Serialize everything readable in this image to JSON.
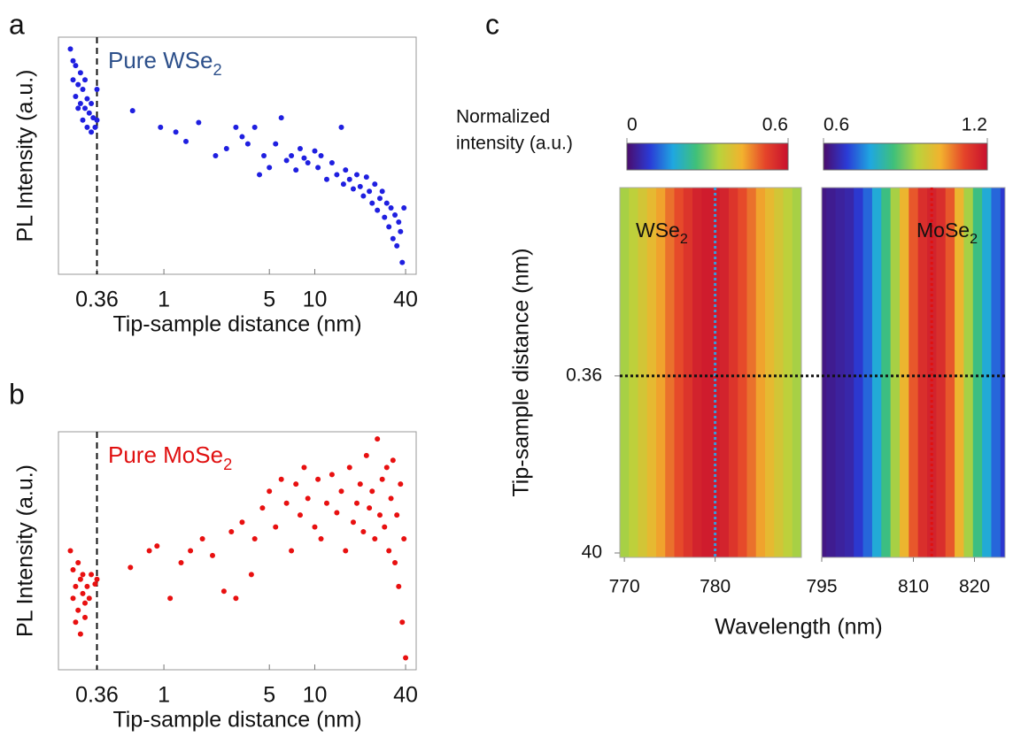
{
  "chart_data": [
    {
      "type": "scatter",
      "label": "a",
      "xlabel": "Tip-sample distance (nm)",
      "ylabel": "PL Intensity (a.u.)",
      "log_x": true,
      "xlim": [
        0.2,
        47
      ],
      "xticks": [
        0.36,
        1,
        5,
        10,
        40
      ],
      "ylim": [
        0,
        1
      ],
      "vline": 0.36,
      "annotation": {
        "text": "Pure WSe",
        "sub": "2",
        "color": "#2c4f8a"
      },
      "series": [
        {
          "color": "#1f1fe0",
          "x": [
            0.24,
            0.25,
            0.25,
            0.26,
            0.26,
            0.27,
            0.27,
            0.28,
            0.28,
            0.29,
            0.29,
            0.3,
            0.3,
            0.31,
            0.31,
            0.32,
            0.33,
            0.33,
            0.34,
            0.35,
            0.36,
            0.36,
            0.62,
            0.95,
            1.2,
            1.4,
            1.7,
            2.2,
            2.6,
            3.0,
            3.3,
            3.6,
            4.0,
            4.3,
            4.6,
            5.0,
            5.5,
            6.0,
            6.5,
            7.0,
            7.5,
            8.0,
            8.5,
            9,
            10,
            10.5,
            11,
            12,
            13,
            14,
            15,
            15.5,
            16,
            17,
            18,
            19,
            20,
            21,
            22,
            23,
            24,
            25,
            26,
            27,
            28,
            29,
            30,
            31,
            32,
            33,
            34,
            35,
            36,
            37,
            38,
            39
          ],
          "values": [
            0.95,
            0.9,
            0.82,
            0.88,
            0.75,
            0.8,
            0.7,
            0.85,
            0.72,
            0.78,
            0.65,
            0.82,
            0.7,
            0.74,
            0.62,
            0.68,
            0.72,
            0.6,
            0.66,
            0.62,
            0.78,
            0.65,
            0.69,
            0.62,
            0.6,
            0.56,
            0.64,
            0.5,
            0.53,
            0.62,
            0.58,
            0.55,
            0.62,
            0.42,
            0.5,
            0.45,
            0.55,
            0.66,
            0.48,
            0.5,
            0.44,
            0.53,
            0.49,
            0.47,
            0.52,
            0.45,
            0.5,
            0.4,
            0.47,
            0.42,
            0.62,
            0.38,
            0.44,
            0.4,
            0.36,
            0.42,
            0.37,
            0.33,
            0.41,
            0.35,
            0.3,
            0.38,
            0.27,
            0.32,
            0.35,
            0.24,
            0.3,
            0.2,
            0.28,
            0.15,
            0.25,
            0.12,
            0.22,
            0.18,
            0.05,
            0.28
          ]
        }
      ]
    },
    {
      "type": "scatter",
      "label": "b",
      "xlabel": "Tip-sample distance (nm)",
      "ylabel": "PL Intensity (a.u.)",
      "log_x": true,
      "xlim": [
        0.2,
        47
      ],
      "xticks": [
        0.36,
        1,
        5,
        10,
        40
      ],
      "ylim": [
        0,
        1
      ],
      "vline": 0.36,
      "annotation": {
        "text": "Pure MoSe",
        "sub": "2",
        "color": "#e01010"
      },
      "series": [
        {
          "color": "#e81010",
          "x": [
            0.24,
            0.25,
            0.25,
            0.26,
            0.26,
            0.27,
            0.27,
            0.28,
            0.28,
            0.29,
            0.29,
            0.3,
            0.3,
            0.31,
            0.32,
            0.33,
            0.35,
            0.36,
            0.6,
            0.8,
            0.9,
            1.1,
            1.3,
            1.5,
            1.8,
            2.1,
            2.5,
            2.8,
            3.0,
            3.3,
            3.8,
            4.0,
            4.5,
            5.0,
            5.5,
            6,
            6.5,
            7,
            7.5,
            8,
            8.5,
            9,
            10,
            10.5,
            11,
            12,
            13,
            14,
            15,
            16,
            17,
            18,
            19,
            20,
            21,
            22,
            23,
            24,
            25,
            26,
            27,
            28,
            29,
            30,
            31,
            32,
            33,
            34,
            35,
            36,
            37,
            38,
            39,
            40
          ],
          "values": [
            0.5,
            0.3,
            0.42,
            0.2,
            0.35,
            0.45,
            0.25,
            0.38,
            0.15,
            0.32,
            0.4,
            0.28,
            0.22,
            0.35,
            0.3,
            0.4,
            0.36,
            0.38,
            0.43,
            0.5,
            0.52,
            0.3,
            0.45,
            0.5,
            0.55,
            0.48,
            0.33,
            0.58,
            0.3,
            0.62,
            0.4,
            0.55,
            0.68,
            0.75,
            0.6,
            0.8,
            0.7,
            0.5,
            0.78,
            0.65,
            0.85,
            0.72,
            0.6,
            0.8,
            0.55,
            0.7,
            0.82,
            0.66,
            0.75,
            0.5,
            0.85,
            0.62,
            0.7,
            0.78,
            0.58,
            0.9,
            0.68,
            0.75,
            0.55,
            0.97,
            0.65,
            0.8,
            0.6,
            0.85,
            0.5,
            0.72,
            0.88,
            0.45,
            0.65,
            0.35,
            0.78,
            0.2,
            0.55,
            0.05
          ]
        }
      ]
    },
    {
      "type": "heatmap",
      "label": "c",
      "xlabel": "Wavelength (nm)",
      "ylabel": "Tip-sample distance (nm)",
      "log_y": true,
      "ylim": [
        0.0024,
        45
      ],
      "yticks": [
        0.36,
        40
      ],
      "hline": 0.36,
      "colorbar_label": [
        "Normalized",
        "intensity (a.u.)"
      ],
      "colormap": [
        "#4b0c6b",
        "#2a3bd6",
        "#1fa7e0",
        "#3fc07a",
        "#b9d33c",
        "#f2b22e",
        "#e5452a",
        "#c8102e"
      ],
      "maps": [
        {
          "name": {
            "text": "WSe",
            "sub": "2"
          },
          "xlim": [
            769.5,
            789.5
          ],
          "xticks": [
            770,
            780
          ],
          "clim": [
            0,
            0.6
          ],
          "cticks": [
            0,
            0.6
          ],
          "marker_line": {
            "value": 780,
            "color": "#3a9ad9"
          },
          "x": [
            770,
            771,
            772,
            773,
            774,
            775,
            776,
            777,
            778,
            779,
            780,
            781,
            782,
            783,
            784,
            785,
            786,
            787,
            788,
            789
          ],
          "values": [
            0.33,
            0.35,
            0.38,
            0.41,
            0.44,
            0.48,
            0.51,
            0.54,
            0.57,
            0.58,
            0.58,
            0.57,
            0.54,
            0.51,
            0.48,
            0.44,
            0.41,
            0.38,
            0.35,
            0.33
          ]
        },
        {
          "name": {
            "text": "MoSe",
            "sub": "2"
          },
          "xlim": [
            795,
            825
          ],
          "xticks": [
            795,
            810,
            820
          ],
          "clim": [
            0.6,
            1.2
          ],
          "cticks": [
            0.6,
            1.2
          ],
          "marker_line": {
            "value": 813,
            "color": "#e01010"
          },
          "x": [
            795,
            796.5,
            798,
            799.5,
            801,
            802.5,
            804,
            805.5,
            807,
            808.5,
            810,
            811.5,
            813,
            814.5,
            816,
            817.5,
            819,
            820.5,
            822,
            823.5,
            825
          ],
          "values": [
            0.62,
            0.63,
            0.64,
            0.65,
            0.68,
            0.72,
            0.78,
            0.85,
            0.93,
            1.02,
            1.1,
            1.15,
            1.17,
            1.15,
            1.1,
            1.02,
            0.93,
            0.85,
            0.78,
            0.72,
            0.68
          ]
        }
      ]
    }
  ]
}
